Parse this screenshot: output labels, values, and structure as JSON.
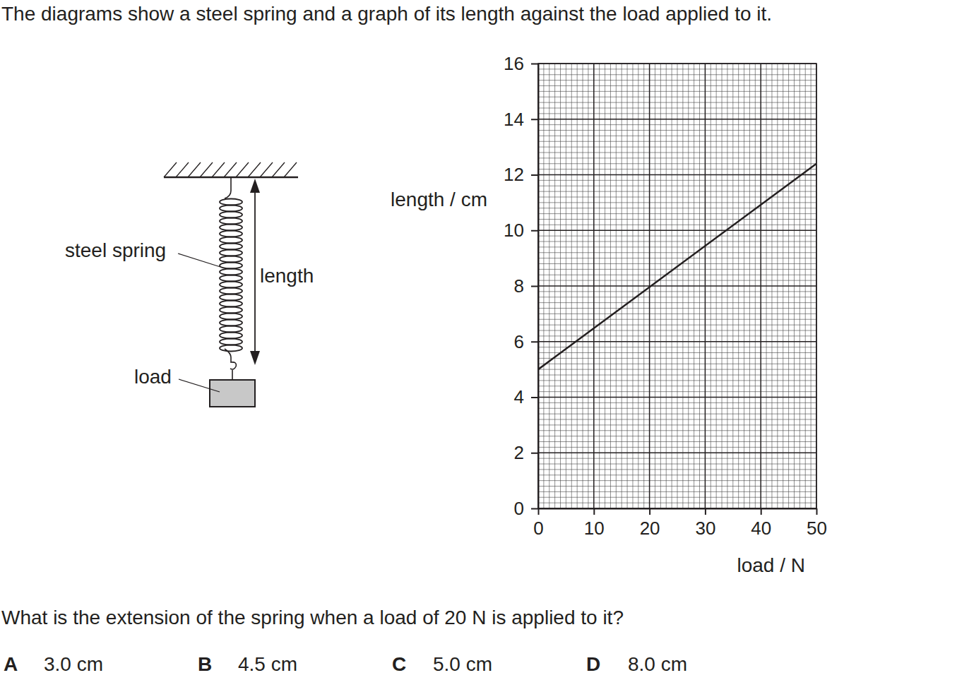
{
  "question": {
    "intro": "The diagrams show a steel spring and a graph of its length against the load applied to it.",
    "prompt": "What is the extension of the spring when a load of 20 N is applied to it?",
    "options": [
      {
        "letter": "A",
        "text": "3.0 cm"
      },
      {
        "letter": "B",
        "text": "4.5 cm"
      },
      {
        "letter": "C",
        "text": "5.0 cm"
      },
      {
        "letter": "D",
        "text": "8.0 cm"
      }
    ]
  },
  "diagram": {
    "spring_label": "steel spring",
    "length_label": "length",
    "load_label": "load"
  },
  "chart_data": {
    "type": "line",
    "x_label": "load / N",
    "y_label": "length / cm",
    "x": [
      0,
      50
    ],
    "values": [
      5.0,
      12.4
    ],
    "color": "#231f20",
    "xlim": [
      0,
      50
    ],
    "ylim": [
      0,
      16
    ],
    "xticks": [
      0,
      10,
      20,
      30,
      40,
      50
    ],
    "yticks": [
      0,
      2,
      4,
      6,
      8,
      10,
      12,
      14,
      16
    ],
    "grid": true
  }
}
